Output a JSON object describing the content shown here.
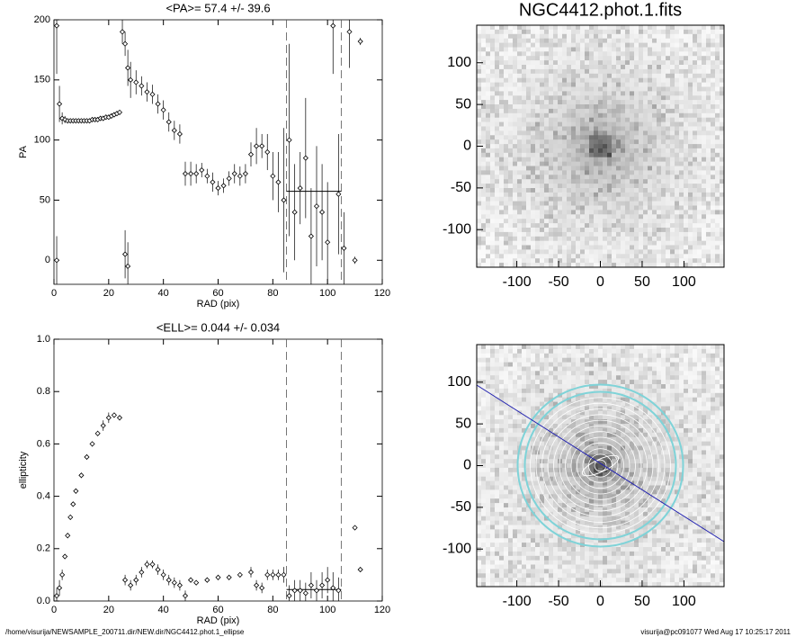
{
  "chart_data": [
    {
      "type": "scatter",
      "title": "<PA>=  57.4 +/-  39.6",
      "x_label": "RAD (pix)",
      "y_label": "PA",
      "xlim": [
        0,
        120
      ],
      "ylim": [
        -20,
        200
      ],
      "xticks": [
        0,
        20,
        40,
        60,
        80,
        100,
        120
      ],
      "yticks": [
        0,
        50,
        100,
        150,
        200
      ],
      "x": [
        1,
        1,
        2,
        3,
        4,
        5,
        6,
        7,
        8,
        9,
        10,
        11,
        12,
        13,
        14,
        15,
        16,
        17,
        18,
        19,
        20,
        21,
        22,
        23,
        24,
        25,
        26,
        26,
        27,
        27,
        28,
        30,
        32,
        34,
        36,
        38,
        40,
        42,
        44,
        46,
        48,
        50,
        52,
        54,
        56,
        58,
        60,
        62,
        64,
        66,
        68,
        70,
        72,
        74,
        76,
        78,
        80,
        82,
        84,
        86,
        88,
        90,
        92,
        94,
        96,
        98,
        100,
        102,
        104,
        106,
        108,
        110,
        112
      ],
      "values": [
        195,
        0,
        130,
        118,
        117,
        116,
        116,
        116,
        116,
        116,
        116,
        116,
        116,
        116,
        117,
        117,
        117,
        118,
        118,
        119,
        119,
        120,
        121,
        122,
        123,
        190,
        180,
        5,
        160,
        -5,
        150,
        148,
        145,
        140,
        138,
        130,
        125,
        115,
        108,
        105,
        72,
        72,
        72,
        75,
        70,
        65,
        60,
        62,
        68,
        72,
        70,
        72,
        88,
        95,
        95,
        90,
        70,
        65,
        50,
        100,
        40,
        60,
        85,
        20,
        45,
        40,
        15,
        195,
        55,
        10,
        190,
        0,
        182
      ],
      "errors": [
        40,
        20,
        15,
        5,
        3,
        2,
        2,
        2,
        2,
        2,
        2,
        2,
        2,
        2,
        2,
        2,
        2,
        2,
        2,
        2,
        2,
        2,
        2,
        2,
        2,
        10,
        10,
        20,
        15,
        20,
        15,
        10,
        8,
        8,
        8,
        8,
        8,
        8,
        8,
        8,
        10,
        10,
        8,
        6,
        6,
        8,
        6,
        6,
        6,
        8,
        8,
        8,
        10,
        15,
        10,
        15,
        20,
        25,
        60,
        80,
        40,
        30,
        50,
        40,
        50,
        40,
        50,
        40,
        50,
        30,
        30,
        3,
        3
      ],
      "color": "#000000",
      "vlines": [
        85,
        105
      ],
      "hline": {
        "value": 57.4,
        "x": [
          85,
          105
        ]
      }
    },
    {
      "type": "scatter",
      "title": "<ELL>= 0.044 +/-  0.034",
      "x_label": "RAD (pix)",
      "y_label": "ellipticity",
      "xlim": [
        0,
        120
      ],
      "ylim": [
        0,
        1
      ],
      "xticks": [
        0,
        20,
        40,
        60,
        80,
        100,
        120
      ],
      "yticks": [
        {
          "value": 0,
          "label": "0.0"
        },
        0.2,
        0.4,
        0.6,
        0.8,
        {
          "value": 1,
          "label": "1.0"
        }
      ],
      "x": [
        1,
        2,
        3,
        4,
        5,
        6,
        7,
        8,
        10,
        12,
        14,
        16,
        18,
        20,
        22,
        24,
        26,
        28,
        30,
        32,
        34,
        36,
        38,
        40,
        42,
        44,
        46,
        48,
        50,
        52,
        56,
        60,
        64,
        68,
        72,
        74,
        76,
        78,
        80,
        82,
        84,
        86,
        88,
        90,
        92,
        94,
        96,
        98,
        100,
        102,
        104,
        110,
        112
      ],
      "values": [
        0.02,
        0.05,
        0.1,
        0.17,
        0.25,
        0.32,
        0.37,
        0.42,
        0.48,
        0.55,
        0.6,
        0.64,
        0.67,
        0.7,
        0.71,
        0.7,
        0.08,
        0.06,
        0.08,
        0.11,
        0.14,
        0.14,
        0.12,
        0.1,
        0.08,
        0.07,
        0.06,
        0.02,
        0.08,
        0.07,
        0.08,
        0.09,
        0.09,
        0.1,
        0.11,
        0.06,
        0.05,
        0.1,
        0.1,
        0.1,
        0.1,
        0.02,
        0.04,
        0.04,
        0.03,
        0.06,
        0.04,
        0.06,
        0.08,
        0.05,
        0.04,
        0.28,
        0.12
      ],
      "errors": [
        0.03,
        0.03,
        0.02,
        0.01,
        0.01,
        0.01,
        0.01,
        0.01,
        0.01,
        0.01,
        0.01,
        0.01,
        0.02,
        0.02,
        0.01,
        0.01,
        0.02,
        0.02,
        0.02,
        0.02,
        0.015,
        0.015,
        0.02,
        0.02,
        0.02,
        0.02,
        0.02,
        0.02,
        0.01,
        0.01,
        0.01,
        0.01,
        0.01,
        0.01,
        0.02,
        0.02,
        0.02,
        0.02,
        0.02,
        0.02,
        0.03,
        0.04,
        0.04,
        0.04,
        0.04,
        0.05,
        0.04,
        0.05,
        0.05,
        0.06,
        0.05,
        0.005,
        0.01
      ],
      "color": "#000000",
      "vlines": [
        85,
        105
      ],
      "hline": {
        "value": 0.044,
        "x": [
          85,
          105
        ]
      }
    },
    {
      "type": "image",
      "title": "NGC4412.phot.1.fits",
      "xlim": [
        -148,
        148
      ],
      "ylim": [
        -145,
        145
      ],
      "xticks": [
        -100,
        -50,
        0,
        50,
        100
      ],
      "yticks": [
        -100,
        -50,
        0,
        50,
        100
      ],
      "overlay": false
    },
    {
      "type": "image",
      "xlim": [
        -148,
        148
      ],
      "ylim": [
        -145,
        145
      ],
      "xticks": [
        -100,
        -50,
        0,
        50,
        100
      ],
      "yticks": [
        -100,
        -50,
        0,
        50,
        100
      ],
      "overlay": true
    }
  ],
  "footer": {
    "left": "/home/visurija/NEWSAMPLE_200711.dir/NEW.dir/NGC4412.phot.1_ellipse",
    "right": "visurija@pc091077  Wed Aug 17 10:25:17 2011"
  }
}
